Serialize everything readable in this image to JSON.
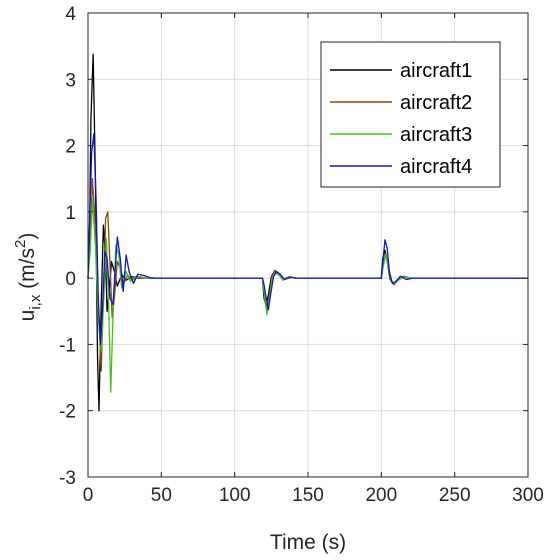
{
  "chart_data": {
    "type": "line",
    "xlabel": "Time (s)",
    "ylabel": {
      "base": "u",
      "sub": "i,x",
      "rest_open": " (m/s",
      "sup": "2",
      "rest_close": ")"
    },
    "xlim": [
      0,
      300
    ],
    "ylim": [
      -3,
      4
    ],
    "xticks": [
      0,
      50,
      100,
      150,
      200,
      250,
      300
    ],
    "yticks": [
      -3,
      -2,
      -1,
      0,
      1,
      2,
      3,
      4
    ],
    "grid": true,
    "legend_position": "top-right",
    "series": [
      {
        "name": "aircraft1",
        "color": "#000000",
        "points": [
          [
            0,
            0
          ],
          [
            1,
            0.6
          ],
          [
            2,
            2.4
          ],
          [
            3.5,
            3.38
          ],
          [
            5,
            1.6
          ],
          [
            6.5,
            -1.2
          ],
          [
            7.5,
            -2.0
          ],
          [
            9,
            -0.4
          ],
          [
            10.5,
            0.8
          ],
          [
            12,
            0.3
          ],
          [
            13,
            -0.5
          ],
          [
            14.5,
            -0.2
          ],
          [
            16,
            0.25
          ],
          [
            18,
            0.1
          ],
          [
            20,
            -0.12
          ],
          [
            23,
            0.05
          ],
          [
            26,
            -0.03
          ],
          [
            30,
            0.02
          ],
          [
            35,
            0.0
          ],
          [
            118,
            0.0
          ],
          [
            119,
            0.0
          ],
          [
            120,
            -0.3
          ],
          [
            121.5,
            -0.42
          ],
          [
            123,
            -0.25
          ],
          [
            125,
            0.02
          ],
          [
            127,
            0.1
          ],
          [
            130,
            0.05
          ],
          [
            133,
            -0.02
          ],
          [
            137,
            0.02
          ],
          [
            142,
            0.0
          ],
          [
            199,
            0.0
          ],
          [
            200,
            0.0
          ],
          [
            201,
            0.3
          ],
          [
            202.5,
            0.42
          ],
          [
            204,
            0.25
          ],
          [
            206,
            -0.02
          ],
          [
            208,
            -0.08
          ],
          [
            211,
            -0.03
          ],
          [
            215,
            0.02
          ],
          [
            220,
            0.0
          ],
          [
            300,
            0.0
          ]
        ]
      },
      {
        "name": "aircraft2",
        "color": "#8b4513",
        "points": [
          [
            0,
            0
          ],
          [
            1.5,
            0.5
          ],
          [
            3,
            1.5
          ],
          [
            5,
            0.8
          ],
          [
            7,
            -0.4
          ],
          [
            9,
            -1.4
          ],
          [
            10.5,
            -0.3
          ],
          [
            12,
            0.9
          ],
          [
            13.5,
            1.0
          ],
          [
            15,
            0.2
          ],
          [
            16.5,
            -0.6
          ],
          [
            18,
            -0.3
          ],
          [
            20,
            0.25
          ],
          [
            22,
            0.15
          ],
          [
            24,
            -0.1
          ],
          [
            27,
            0.05
          ],
          [
            30,
            -0.03
          ],
          [
            35,
            0.02
          ],
          [
            40,
            0.0
          ],
          [
            118,
            0.0
          ],
          [
            119,
            0.0
          ],
          [
            120.5,
            -0.25
          ],
          [
            122,
            -0.5
          ],
          [
            123.5,
            -0.3
          ],
          [
            125.5,
            0.02
          ],
          [
            127.5,
            0.12
          ],
          [
            130,
            0.06
          ],
          [
            133,
            -0.03
          ],
          [
            137,
            0.02
          ],
          [
            142,
            0.0
          ],
          [
            199,
            0.0
          ],
          [
            200,
            0.0
          ],
          [
            201.5,
            0.25
          ],
          [
            203,
            0.38
          ],
          [
            204.5,
            0.22
          ],
          [
            206.5,
            -0.03
          ],
          [
            208.5,
            -0.1
          ],
          [
            211,
            -0.04
          ],
          [
            215,
            0.03
          ],
          [
            220,
            0.0
          ],
          [
            300,
            0.0
          ]
        ]
      },
      {
        "name": "aircraft3",
        "color": "#44c21a",
        "points": [
          [
            0,
            0
          ],
          [
            1.5,
            0.4
          ],
          [
            3,
            1.2
          ],
          [
            5,
            0.5
          ],
          [
            7,
            -0.6
          ],
          [
            9,
            -1.1
          ],
          [
            11,
            -0.2
          ],
          [
            12.5,
            0.6
          ],
          [
            14,
            -0.3
          ],
          [
            15.5,
            -1.72
          ],
          [
            17,
            -0.6
          ],
          [
            19,
            0.5
          ],
          [
            21,
            0.35
          ],
          [
            23,
            -0.15
          ],
          [
            26,
            0.1
          ],
          [
            29,
            -0.05
          ],
          [
            33,
            0.03
          ],
          [
            38,
            0.0
          ],
          [
            118,
            0.0
          ],
          [
            119,
            0.0
          ],
          [
            120.5,
            -0.3
          ],
          [
            122,
            -0.55
          ],
          [
            123.5,
            -0.35
          ],
          [
            125.5,
            0.0
          ],
          [
            127.5,
            0.08
          ],
          [
            130,
            0.05
          ],
          [
            133,
            -0.02
          ],
          [
            137,
            0.01
          ],
          [
            142,
            0.0
          ],
          [
            199,
            0.0
          ],
          [
            200,
            0.0
          ],
          [
            201.5,
            0.2
          ],
          [
            203,
            0.35
          ],
          [
            204.5,
            0.2
          ],
          [
            206.5,
            -0.02
          ],
          [
            208.5,
            -0.08
          ],
          [
            211,
            -0.04
          ],
          [
            215,
            0.02
          ],
          [
            220,
            0.0
          ],
          [
            300,
            0.0
          ]
        ]
      },
      {
        "name": "aircraft4",
        "color": "#1515c8",
        "points": [
          [
            0,
            0
          ],
          [
            1,
            0.8
          ],
          [
            2.5,
            1.9
          ],
          [
            4,
            2.18
          ],
          [
            5.5,
            1.2
          ],
          [
            7,
            -0.3
          ],
          [
            8.5,
            -1.0
          ],
          [
            10,
            -0.4
          ],
          [
            11.5,
            0.4
          ],
          [
            13,
            0.3
          ],
          [
            15,
            -0.3
          ],
          [
            17,
            -0.4
          ],
          [
            18.5,
            0.1
          ],
          [
            20,
            0.62
          ],
          [
            22,
            0.3
          ],
          [
            24,
            -0.2
          ],
          [
            26,
            0.35
          ],
          [
            28,
            0.1
          ],
          [
            31,
            -0.08
          ],
          [
            34,
            0.06
          ],
          [
            38,
            0.04
          ],
          [
            42,
            0.01
          ],
          [
            46,
            0.0
          ],
          [
            118,
            0.0
          ],
          [
            119,
            0.0
          ],
          [
            120,
            -0.1
          ],
          [
            121.5,
            -0.3
          ],
          [
            123,
            -0.48
          ],
          [
            124.5,
            -0.25
          ],
          [
            126.5,
            0.02
          ],
          [
            128.5,
            0.1
          ],
          [
            131,
            0.06
          ],
          [
            134,
            -0.02
          ],
          [
            138,
            0.01
          ],
          [
            143,
            0.0
          ],
          [
            199,
            0.0
          ],
          [
            200,
            0.0
          ],
          [
            201,
            0.25
          ],
          [
            202.5,
            0.58
          ],
          [
            204,
            0.45
          ],
          [
            205.5,
            0.1
          ],
          [
            207.5,
            -0.08
          ],
          [
            210,
            -0.05
          ],
          [
            213,
            0.03
          ],
          [
            217,
            -0.02
          ],
          [
            222,
            0.0
          ],
          [
            300,
            0.0
          ]
        ]
      }
    ]
  }
}
